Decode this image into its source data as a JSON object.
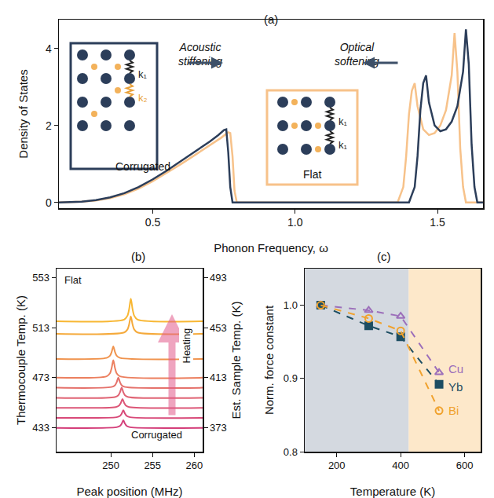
{
  "chart_data": [
    {
      "label": "(a)",
      "type": "line",
      "x_label": "Phonon Frequency, ω",
      "y_label": "Density of States",
      "xlim": [
        0.17,
        1.66
      ],
      "xticks": [
        0.5,
        {
          "value": 1.0,
          "label": "1.0"
        },
        1.5
      ],
      "ylim": [
        -0.15,
        4.75
      ],
      "yticks": [
        0,
        2,
        4
      ],
      "grid": false,
      "series": [
        {
          "color": "#f7c28a",
          "x": [
            0.17,
            0.25,
            0.3,
            0.35,
            0.4,
            0.45,
            0.5,
            0.55,
            0.6,
            0.65,
            0.7,
            0.74,
            0.765,
            0.772,
            0.78,
            0.787,
            0.795,
            1.0,
            1.36,
            1.38,
            1.39,
            1.4,
            1.41,
            1.42,
            1.43,
            1.45,
            1.47,
            1.49,
            1.51,
            1.53,
            1.55,
            1.56,
            1.57,
            1.58,
            1.59,
            1.6,
            1.66
          ],
          "values": [
            0,
            0.02,
            0.05,
            0.11,
            0.21,
            0.36,
            0.55,
            0.77,
            1.0,
            1.24,
            1.48,
            1.68,
            1.82,
            1.8,
            1.2,
            0.3,
            0,
            0,
            0,
            0.4,
            1.2,
            2.3,
            2.9,
            3.1,
            2.5,
            1.9,
            1.75,
            1.8,
            2.0,
            2.4,
            3.3,
            4.4,
            3.4,
            1.4,
            0.4,
            0,
            0
          ]
        },
        {
          "color": "#2c3e5a",
          "x": [
            0.17,
            0.25,
            0.3,
            0.35,
            0.4,
            0.45,
            0.5,
            0.55,
            0.6,
            0.65,
            0.7,
            0.73,
            0.75,
            0.758,
            0.765,
            0.772,
            0.78,
            1.0,
            1.4,
            1.42,
            1.43,
            1.44,
            1.45,
            1.46,
            1.47,
            1.49,
            1.51,
            1.53,
            1.55,
            1.57,
            1.59,
            1.6,
            1.61,
            1.62,
            1.63,
            1.64,
            1.66
          ],
          "values": [
            0,
            0.02,
            0.06,
            0.13,
            0.24,
            0.4,
            0.6,
            0.83,
            1.08,
            1.33,
            1.58,
            1.75,
            1.88,
            1.9,
            1.3,
            0.4,
            0,
            0,
            0,
            0.4,
            1.2,
            2.4,
            3.1,
            3.3,
            2.6,
            2.0,
            1.85,
            1.9,
            2.1,
            2.5,
            3.4,
            4.5,
            3.6,
            1.5,
            0.4,
            0,
            0
          ]
        }
      ],
      "annotations": [
        "Acoustic stiffening",
        "Optical softening"
      ],
      "insets": [
        {
          "label": "Corrugated",
          "color": "#2c3e5a",
          "springs": [
            "k₁",
            "k₂"
          ]
        },
        {
          "label": "Flat",
          "color": "#f7c28a",
          "springs": [
            "k₁",
            "k₁"
          ]
        }
      ]
    },
    {
      "label": "(b)",
      "type": "line",
      "x_label": "Peak position (MHz)",
      "y_label": "Thermocouple Temp. (K)",
      "y2_label": "Est. Sample Temp. (K)",
      "xlim": [
        243.5,
        261
      ],
      "xticks": [
        250,
        255,
        260
      ],
      "ylim": [
        414,
        560
      ],
      "yticks": [
        433,
        473,
        513,
        553
      ],
      "y2lim": [
        354,
        500
      ],
      "y2ticks": [
        373,
        413,
        453,
        493
      ],
      "grid": false,
      "series": [
        {
          "color": "#d43f7a",
          "x": [
            243.5,
            250.7,
            251.1,
            251.3,
            251.5,
            251.7,
            251.9,
            252.3,
            261
          ],
          "values": [
            433,
            433.5,
            434.5,
            436.3,
            439,
            436.3,
            434.5,
            433.5,
            433
          ]
        },
        {
          "color": "#d84a79",
          "x": [
            243.5,
            250.7,
            251.1,
            251.3,
            251.5,
            251.7,
            251.9,
            252.3,
            261
          ],
          "values": [
            441,
            441.5,
            442.5,
            444.3,
            447,
            444.3,
            442.5,
            441.5,
            441
          ]
        },
        {
          "color": "#dc5677",
          "x": [
            243.5,
            250.6,
            251.0,
            251.2,
            251.4,
            251.6,
            251.8,
            252.2,
            261
          ],
          "values": [
            449,
            449.6,
            450.8,
            452.9,
            456,
            452.9,
            450.8,
            449.6,
            449
          ]
        },
        {
          "color": "#e06474",
          "x": [
            243.5,
            250.5,
            250.9,
            251.1,
            251.3,
            251.5,
            251.7,
            252.1,
            261
          ],
          "values": [
            457,
            457.6,
            459,
            461.4,
            465,
            461.4,
            459,
            457.6,
            457
          ]
        },
        {
          "color": "#e5726c",
          "x": [
            243.5,
            250.1,
            250.5,
            250.7,
            250.9,
            251.1,
            251.3,
            251.7,
            261
          ],
          "values": [
            465,
            465.6,
            467,
            469.4,
            473,
            469.4,
            467,
            465.6,
            465
          ]
        },
        {
          "color": "#ec7f5f",
          "x": [
            243.5,
            249.5,
            249.9,
            250.1,
            250.3,
            250.5,
            250.7,
            251.1,
            261
          ],
          "values": [
            473,
            474.1,
            476.5,
            480.7,
            487,
            480.7,
            476.5,
            474.1,
            473
          ]
        },
        {
          "color": "#f0934d",
          "x": [
            243.5,
            249.5,
            249.9,
            250.1,
            250.3,
            250.5,
            250.7,
            251.1,
            261
          ],
          "values": [
            488,
            488.8,
            490.5,
            493.5,
            498,
            493.5,
            490.5,
            488.8,
            488
          ]
        },
        {
          "color": "#f5aa3c",
          "x": [
            243.5,
            251.6,
            252.0,
            252.2,
            252.4,
            252.6,
            252.8,
            253.2,
            261
          ],
          "values": [
            508,
            509.1,
            511.5,
            515.7,
            522,
            515.7,
            511.5,
            509.1,
            508
          ]
        },
        {
          "color": "#f8b733",
          "x": [
            243.5,
            251.6,
            252.0,
            252.2,
            252.4,
            252.6,
            252.8,
            253.2,
            261
          ],
          "values": [
            518,
            519.4,
            522.5,
            527.9,
            536,
            527.9,
            522.5,
            519.4,
            518
          ]
        }
      ],
      "annotations": [
        "Flat",
        "Corrugated",
        "Heating"
      ]
    },
    {
      "label": "(c)",
      "type": "line",
      "x_label": "Temperature (K)",
      "y_label": "Norm. force constant",
      "xlim": [
        100,
        650
      ],
      "xticks": [
        200,
        400,
        600
      ],
      "ylim": [
        0.8,
        1.05
      ],
      "yticks": [
        0.8,
        0.9,
        {
          "value": 1.0,
          "label": "1.0"
        }
      ],
      "grid": false,
      "x": [
        150,
        300,
        400,
        520
      ],
      "series": [
        {
          "name": "Cu",
          "color": "#9c6fba",
          "marker": "triangle-up-open",
          "line_style": "dash",
          "values": [
            1.0,
            0.993,
            0.985,
            0.908
          ]
        },
        {
          "name": "Yb",
          "color": "#1d4e63",
          "marker": "square",
          "line_style": "dash",
          "values": [
            1.0,
            0.972,
            0.957,
            0.892
          ]
        },
        {
          "name": "Bi",
          "color": "#f0a22e",
          "marker": "circle-open",
          "line_style": "dash",
          "values": [
            1.0,
            0.982,
            0.965,
            0.856
          ]
        }
      ],
      "shaded_spans": [
        {
          "x0": 100,
          "x1": 425,
          "color": "#c9cfd8"
        },
        {
          "x0": 425,
          "x1": 650,
          "color": "#fde2bd"
        }
      ]
    }
  ]
}
